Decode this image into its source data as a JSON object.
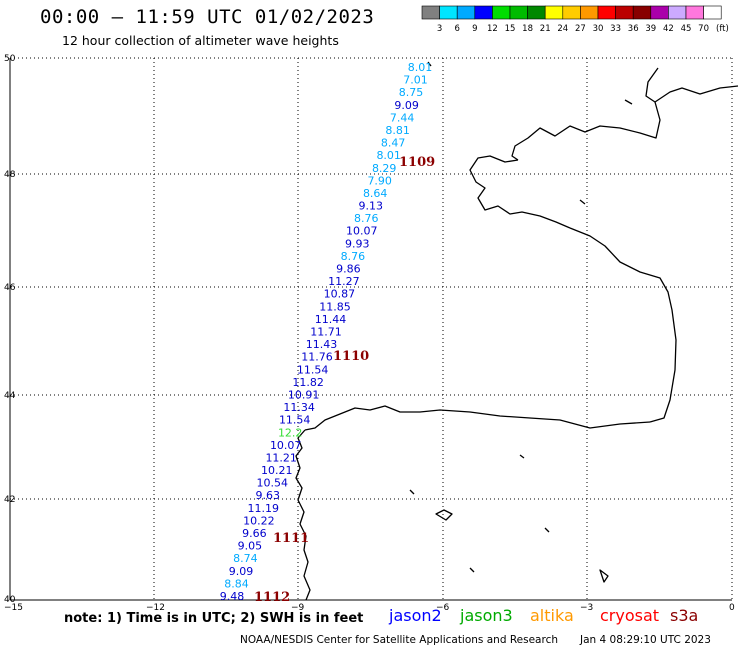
{
  "header": {
    "title": "00:00 – 11:59 UTC 01/02/2023",
    "subtitle": "12 hour collection of altimeter wave heights"
  },
  "legend": {
    "labels": [
      "3",
      "6",
      "9",
      "12",
      "15",
      "18",
      "21",
      "24",
      "27",
      "30",
      "33",
      "36",
      "39",
      "42",
      "45",
      "70"
    ],
    "unit": "(ft)",
    "colors": [
      "#808080",
      "#00e5ff",
      "#00aaff",
      "#0000ff",
      "#00dd00",
      "#00bb00",
      "#008800",
      "#ffff00",
      "#ffcc00",
      "#ff9900",
      "#ff0000",
      "#bb0000",
      "#880000",
      "#aa00aa",
      "#ccaaff",
      "#ff77dd",
      "#ffffff"
    ]
  },
  "axes": {
    "lon_labels": [
      "−15",
      "−12",
      "−9",
      "−6",
      "−3",
      "0"
    ],
    "lat_labels": [
      "50",
      "48",
      "46",
      "44",
      "42",
      "40"
    ]
  },
  "orbits": [
    {
      "label": "1109"
    },
    {
      "label": "1110"
    },
    {
      "label": "1111"
    },
    {
      "label": "1112"
    }
  ],
  "observations": [
    {
      "value": "8.01",
      "color": "#00aaff"
    },
    {
      "value": "7.01",
      "color": "#00aaff"
    },
    {
      "value": "8.75",
      "color": "#00aaff"
    },
    {
      "value": "9.09",
      "color": "#0000cc"
    },
    {
      "value": "7.44",
      "color": "#00aaff"
    },
    {
      "value": "8.81",
      "color": "#00aaff"
    },
    {
      "value": "8.47",
      "color": "#00aaff"
    },
    {
      "value": "8.01",
      "color": "#00aaff"
    },
    {
      "value": "8.29",
      "color": "#00aaff"
    },
    {
      "value": "7.90",
      "color": "#00aaff"
    },
    {
      "value": "8.64",
      "color": "#00aaff"
    },
    {
      "value": "9.13",
      "color": "#0000cc"
    },
    {
      "value": "8.76",
      "color": "#00aaff"
    },
    {
      "value": "10.07",
      "color": "#0000cc"
    },
    {
      "value": "9.93",
      "color": "#0000cc"
    },
    {
      "value": "8.76",
      "color": "#00aaff"
    },
    {
      "value": "9.86",
      "color": "#0000cc"
    },
    {
      "value": "11.27",
      "color": "#0000cc"
    },
    {
      "value": "10.87",
      "color": "#0000cc"
    },
    {
      "value": "11.85",
      "color": "#0000cc"
    },
    {
      "value": "11.44",
      "color": "#0000cc"
    },
    {
      "value": "11.71",
      "color": "#0000cc"
    },
    {
      "value": "11.43",
      "color": "#0000cc"
    },
    {
      "value": "11.76",
      "color": "#0000cc"
    },
    {
      "value": "11.54",
      "color": "#0000cc"
    },
    {
      "value": "11.82",
      "color": "#0000cc"
    },
    {
      "value": "10.91",
      "color": "#0000cc"
    },
    {
      "value": "11.34",
      "color": "#0000cc"
    },
    {
      "value": "11.54",
      "color": "#0000cc"
    },
    {
      "value": "12.2",
      "color": "#33dd33"
    },
    {
      "value": "10.07",
      "color": "#0000cc"
    },
    {
      "value": "11.21",
      "color": "#0000cc"
    },
    {
      "value": "10.21",
      "color": "#0000cc"
    },
    {
      "value": "10.54",
      "color": "#0000cc"
    },
    {
      "value": "9.63",
      "color": "#0000cc"
    },
    {
      "value": "11.19",
      "color": "#0000cc"
    },
    {
      "value": "10.22",
      "color": "#0000cc"
    },
    {
      "value": "9.66",
      "color": "#0000cc"
    },
    {
      "value": "9.05",
      "color": "#0000cc"
    },
    {
      "value": "8.74",
      "color": "#00aaff"
    },
    {
      "value": "9.09",
      "color": "#0000cc"
    },
    {
      "value": "8.84",
      "color": "#00aaff"
    },
    {
      "value": "9.48",
      "color": "#0000cc"
    }
  ],
  "footer": {
    "note": "note: 1) Time is in UTC; 2) SWH is in feet",
    "satellites": [
      {
        "name": "jason2",
        "color": "#0000ff"
      },
      {
        "name": "jason3",
        "color": "#00aa00"
      },
      {
        "name": "altika",
        "color": "#ff9900"
      },
      {
        "name": "cryosat",
        "color": "#ff0000"
      },
      {
        "name": "s3a",
        "color": "#8b0000"
      }
    ],
    "credit": "NOAA/NESDIS Center for Satellite Applications and Research",
    "date": "Jan  4 08:29:10 UTC 2023"
  }
}
